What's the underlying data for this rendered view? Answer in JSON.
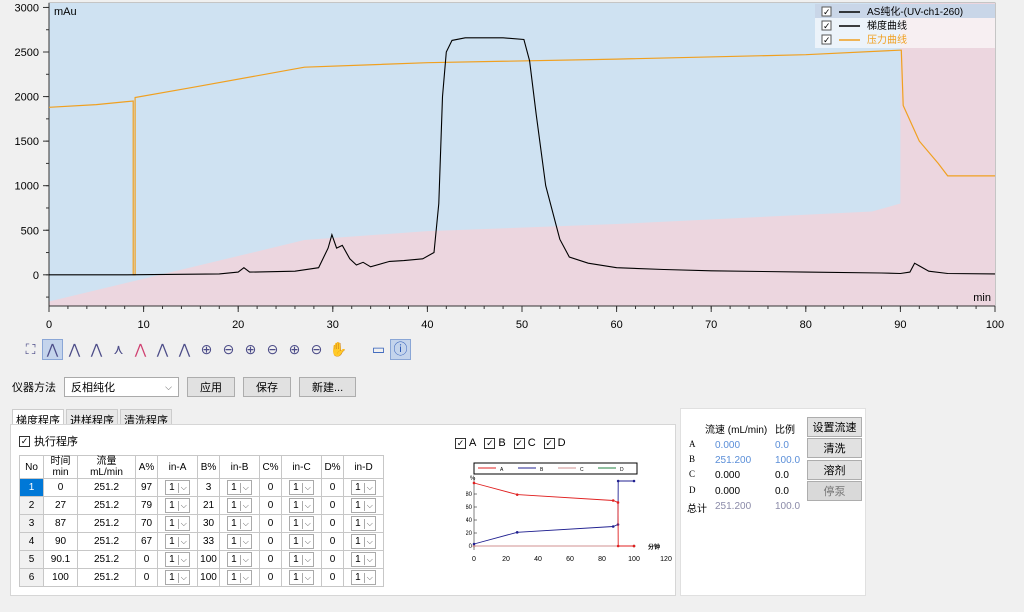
{
  "chart_data": {
    "type": "line",
    "ylabel": "mAu",
    "xlabel": "min",
    "xlim": [
      0,
      100
    ],
    "ylim": [
      -350,
      3050
    ],
    "x_ticks": [
      "0",
      "10",
      "20",
      "30",
      "40",
      "50",
      "60",
      "70",
      "80",
      "90",
      "100"
    ],
    "y_ticks": [
      "0",
      "500",
      "1000",
      "1500",
      "2000",
      "2500",
      "3000"
    ],
    "legend": [
      {
        "name": "AS纯化-(UV-ch1-260)",
        "checked": true,
        "color": "#000000"
      },
      {
        "name": "梯度曲线",
        "checked": true,
        "color": "#000000"
      },
      {
        "name": "压力曲线",
        "checked": true,
        "color": "#f0a020"
      }
    ],
    "uv_series": [
      [
        0,
        0
      ],
      [
        8,
        0
      ],
      [
        18,
        10
      ],
      [
        20,
        30
      ],
      [
        20.6,
        80
      ],
      [
        21.2,
        30
      ],
      [
        26,
        40
      ],
      [
        28.5,
        80
      ],
      [
        29.5,
        300
      ],
      [
        29.9,
        450
      ],
      [
        30.4,
        300
      ],
      [
        31,
        330
      ],
      [
        31.8,
        180
      ],
      [
        32.5,
        110
      ],
      [
        33.2,
        140
      ],
      [
        34,
        90
      ],
      [
        36,
        150
      ],
      [
        37.5,
        160
      ],
      [
        39.5,
        180
      ],
      [
        40.7,
        250
      ],
      [
        41.2,
        800
      ],
      [
        41.6,
        2000
      ],
      [
        42,
        2500
      ],
      [
        42.6,
        2630
      ],
      [
        44,
        2660
      ],
      [
        48,
        2660
      ],
      [
        50.2,
        2640
      ],
      [
        50.8,
        2400
      ],
      [
        51.5,
        1800
      ],
      [
        52.5,
        1000
      ],
      [
        54,
        400
      ],
      [
        55,
        200
      ],
      [
        57,
        130
      ],
      [
        60,
        80
      ],
      [
        65,
        60
      ],
      [
        70,
        45
      ],
      [
        80,
        30
      ],
      [
        88,
        20
      ],
      [
        90,
        15
      ],
      [
        91,
        30
      ],
      [
        91.5,
        130
      ],
      [
        92,
        100
      ],
      [
        93,
        40
      ],
      [
        95,
        15
      ],
      [
        100,
        10
      ]
    ],
    "pressure_series": [
      [
        0,
        1880
      ],
      [
        5,
        1910
      ],
      [
        8.9,
        1950
      ],
      [
        8.9,
        0
      ],
      [
        9.1,
        0
      ],
      [
        9.1,
        1990
      ],
      [
        15,
        2100
      ],
      [
        27,
        2330
      ],
      [
        40,
        2380
      ],
      [
        60,
        2420
      ],
      [
        80,
        2470
      ],
      [
        89.9,
        2520
      ],
      [
        90.1,
        2520
      ],
      [
        90.3,
        1900
      ],
      [
        92,
        1500
      ],
      [
        94,
        1250
      ],
      [
        95,
        1110
      ],
      [
        100,
        1110
      ]
    ],
    "gradient_fill_series": [
      [
        0,
        -300
      ],
      [
        27,
        390
      ],
      [
        40,
        490
      ],
      [
        60,
        570
      ],
      [
        87,
        710
      ],
      [
        90,
        800
      ]
    ],
    "pressure_fill_top": 2520,
    "colors": {
      "uv": "#000000",
      "pressure": "#f0a020",
      "blue_fill": "#cfe2f2",
      "pink_fill": "#ecd6df"
    }
  },
  "method": {
    "label": "仪器方法",
    "value": "反相纯化",
    "apply": "应用",
    "save": "保存",
    "new": "新建..."
  },
  "tabs": [
    "梯度程序",
    "进样程序",
    "清洗程序"
  ],
  "exec_label": "执行程序",
  "gradient_table": {
    "headers": [
      "No",
      "时间 min",
      "流量 mL/min",
      "A%",
      "in-A",
      "B%",
      "in-B",
      "C%",
      "in-C",
      "D%",
      "in-D"
    ],
    "rows": [
      {
        "no": "1",
        "time": "0",
        "flow": "251.2",
        "a": "97",
        "ina": "1",
        "b": "3",
        "inb": "1",
        "c": "0",
        "inc": "1",
        "d": "0",
        "ind": "1"
      },
      {
        "no": "2",
        "time": "27",
        "flow": "251.2",
        "a": "79",
        "ina": "1",
        "b": "21",
        "inb": "1",
        "c": "0",
        "inc": "1",
        "d": "0",
        "ind": "1"
      },
      {
        "no": "3",
        "time": "87",
        "flow": "251.2",
        "a": "70",
        "ina": "1",
        "b": "30",
        "inb": "1",
        "c": "0",
        "inc": "1",
        "d": "0",
        "ind": "1"
      },
      {
        "no": "4",
        "time": "90",
        "flow": "251.2",
        "a": "67",
        "ina": "1",
        "b": "33",
        "inb": "1",
        "c": "0",
        "inc": "1",
        "d": "0",
        "ind": "1"
      },
      {
        "no": "5",
        "time": "90.1",
        "flow": "251.2",
        "a": "0",
        "ina": "1",
        "b": "100",
        "inb": "1",
        "c": "0",
        "inc": "1",
        "d": "0",
        "ind": "1"
      },
      {
        "no": "6",
        "time": "100",
        "flow": "251.2",
        "a": "0",
        "ina": "1",
        "b": "100",
        "inb": "1",
        "c": "0",
        "inc": "1",
        "d": "0",
        "ind": "1"
      }
    ]
  },
  "mini_chart": {
    "checks": [
      "A",
      "B",
      "C",
      "D"
    ],
    "legend": [
      "A",
      "B",
      "C",
      "D"
    ],
    "ylabel": "%",
    "xlabel": "分钟",
    "x_ticks": [
      "0",
      "20",
      "40",
      "60",
      "80",
      "100",
      "120"
    ],
    "y_ticks": [
      "0",
      "20",
      "40",
      "60",
      "80"
    ],
    "A": [
      [
        0,
        97
      ],
      [
        27,
        79
      ],
      [
        87,
        70
      ],
      [
        90,
        67
      ],
      [
        90.1,
        0
      ],
      [
        100,
        0
      ]
    ],
    "B": [
      [
        0,
        3
      ],
      [
        27,
        21
      ],
      [
        87,
        30
      ],
      [
        90,
        33
      ],
      [
        90.1,
        100
      ],
      [
        100,
        100
      ]
    ],
    "C": [
      [
        0,
        0
      ],
      [
        100,
        0
      ]
    ],
    "D": [
      [
        0,
        0
      ],
      [
        100,
        0
      ]
    ]
  },
  "flow_panel": {
    "header_flow": "流速 (mL/min)",
    "header_ratio": "比例",
    "set_flow": "设置流速",
    "wash": "清洗",
    "solvent": "溶剂",
    "stop_pump": "停泵",
    "rows": [
      {
        "label": "A",
        "flow": "0.000",
        "ratio": "0.0"
      },
      {
        "label": "B",
        "flow": "251.200",
        "ratio": "100.0"
      },
      {
        "label": "C",
        "flow": "0.000",
        "ratio": "0.0"
      },
      {
        "label": "D",
        "flow": "0.000",
        "ratio": "0.0"
      }
    ],
    "total_label": "总计",
    "total_flow": "251.200",
    "total_ratio": "100.0"
  }
}
